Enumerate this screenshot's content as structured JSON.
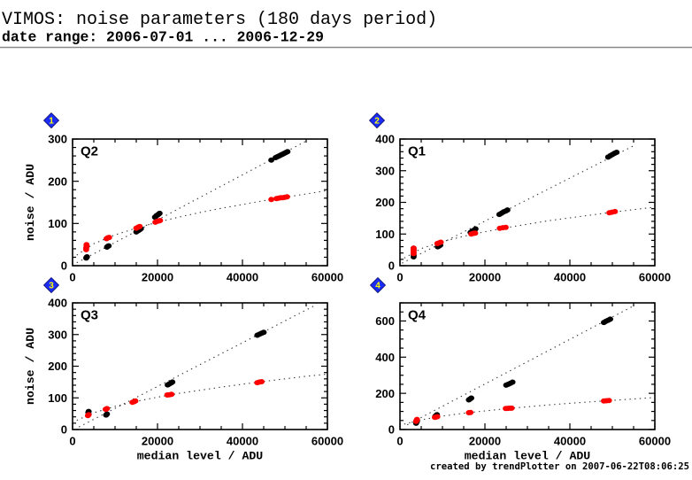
{
  "header": {
    "title": "VIMOS: noise parameters (180 days period)",
    "subtitle": "date range: 2006-07-01 ... 2006-12-29"
  },
  "footer": {
    "credit": "created by trendPlotter on 2007-06-22T08:06:25"
  },
  "chart_data": [
    {
      "type": "scatter",
      "panel_number": "1",
      "label": "Q2",
      "ylabel": "noise / ADU",
      "xlim": [
        0,
        60000
      ],
      "ylim": [
        0,
        300
      ],
      "xticks": [
        0,
        20000,
        40000,
        60000
      ],
      "x_minor_step": 5000,
      "yticks": [
        0,
        100,
        200,
        300
      ],
      "y_minor_step": 20,
      "grid": false,
      "marker_color": "#1a2cf5",
      "series": [
        {
          "name": "black",
          "color": "#000000",
          "points": [
            [
              3200,
              18
            ],
            [
              3300,
              20
            ],
            [
              3400,
              21
            ],
            [
              8100,
              44
            ],
            [
              8300,
              46
            ],
            [
              8500,
              47
            ],
            [
              15000,
              80
            ],
            [
              15300,
              82
            ],
            [
              15600,
              84
            ],
            [
              15900,
              86
            ],
            [
              16100,
              88
            ],
            [
              19400,
              115
            ],
            [
              19700,
              118
            ],
            [
              20000,
              120
            ],
            [
              20300,
              122
            ],
            [
              20500,
              124
            ],
            [
              46800,
              250
            ],
            [
              47800,
              256
            ],
            [
              48200,
              258
            ],
            [
              48600,
              260
            ],
            [
              49000,
              262
            ],
            [
              49400,
              264
            ],
            [
              49800,
              266
            ],
            [
              50200,
              268
            ],
            [
              50600,
              270
            ]
          ]
        },
        {
          "name": "red",
          "color": "#ff0000",
          "points": [
            [
              3200,
              38
            ],
            [
              3200,
              42
            ],
            [
              3300,
              45
            ],
            [
              3300,
              48
            ],
            [
              3300,
              50
            ],
            [
              8000,
              64
            ],
            [
              8300,
              66
            ],
            [
              8600,
              67
            ],
            [
              15000,
              89
            ],
            [
              15400,
              91
            ],
            [
              15800,
              93
            ],
            [
              19500,
              103
            ],
            [
              19900,
              105
            ],
            [
              20300,
              106
            ],
            [
              20600,
              107
            ],
            [
              46800,
              157
            ],
            [
              48000,
              159
            ],
            [
              48500,
              160
            ],
            [
              49000,
              161
            ],
            [
              49500,
              161
            ],
            [
              50000,
              162
            ],
            [
              50500,
              163
            ]
          ]
        }
      ],
      "fit_lines": [
        {
          "name": "black-fit",
          "color": "#333333",
          "style": "dotted",
          "points": [
            [
              1000,
              7
            ],
            [
              55500,
              298
            ]
          ]
        },
        {
          "name": "red-fit",
          "color": "#333333",
          "style": "dotted",
          "points": [
            [
              1000,
              25
            ],
            [
              5000,
              52
            ],
            [
              10000,
              73
            ],
            [
              15000,
              89
            ],
            [
              20000,
              103
            ],
            [
              25000,
              115
            ],
            [
              30000,
              126
            ],
            [
              35000,
              136
            ],
            [
              40000,
              145
            ],
            [
              45000,
              154
            ],
            [
              50000,
              162
            ],
            [
              55000,
              170
            ],
            [
              60000,
              178
            ]
          ]
        }
      ]
    },
    {
      "type": "scatter",
      "panel_number": "2",
      "label": "Q1",
      "xlim": [
        0,
        60000
      ],
      "ylim": [
        0,
        400
      ],
      "xticks": [
        0,
        20000,
        40000,
        60000
      ],
      "x_minor_step": 5000,
      "yticks": [
        0,
        100,
        200,
        300,
        400
      ],
      "y_minor_step": 20,
      "grid": false,
      "marker_color": "#1a2cf5",
      "series": [
        {
          "name": "black",
          "color": "#000000",
          "points": [
            [
              3200,
              28
            ],
            [
              3200,
              35
            ],
            [
              3200,
              42
            ],
            [
              3200,
              50
            ],
            [
              3200,
              55
            ],
            [
              8900,
              60
            ],
            [
              9200,
              62
            ],
            [
              9500,
              65
            ],
            [
              16600,
              105
            ],
            [
              17000,
              109
            ],
            [
              17400,
              112
            ],
            [
              17800,
              116
            ],
            [
              23400,
              162
            ],
            [
              23900,
              166
            ],
            [
              24400,
              170
            ],
            [
              24900,
              173
            ],
            [
              25300,
              176
            ],
            [
              49000,
              343
            ],
            [
              49500,
              347
            ],
            [
              50000,
              351
            ],
            [
              50500,
              355
            ],
            [
              51000,
              358
            ]
          ]
        },
        {
          "name": "red",
          "color": "#ff0000",
          "points": [
            [
              3200,
              38
            ],
            [
              3200,
              44
            ],
            [
              3200,
              50
            ],
            [
              3200,
              55
            ],
            [
              8800,
              70
            ],
            [
              9200,
              72
            ],
            [
              9600,
              74
            ],
            [
              16800,
              100
            ],
            [
              17300,
              102
            ],
            [
              17700,
              103
            ],
            [
              23500,
              118
            ],
            [
              24200,
              120
            ],
            [
              24900,
              121
            ],
            [
              49300,
              167
            ],
            [
              49900,
              169
            ],
            [
              50600,
              171
            ]
          ]
        }
      ],
      "fit_lines": [
        {
          "name": "black-fit",
          "color": "#333333",
          "style": "dotted",
          "points": [
            [
              500,
              8
            ],
            [
              55500,
              382
            ]
          ]
        },
        {
          "name": "red-fit",
          "color": "#333333",
          "style": "dotted",
          "points": [
            [
              1000,
              24
            ],
            [
              5000,
              54
            ],
            [
              10000,
              76
            ],
            [
              15000,
              93
            ],
            [
              20000,
              107
            ],
            [
              25000,
              120
            ],
            [
              30000,
              131
            ],
            [
              35000,
              142
            ],
            [
              40000,
              151
            ],
            [
              45000,
              160
            ],
            [
              50000,
              169
            ],
            [
              55000,
              177
            ],
            [
              60000,
              185
            ]
          ]
        }
      ]
    },
    {
      "type": "scatter",
      "panel_number": "3",
      "label": "Q3",
      "xlabel": "median level / ADU",
      "ylabel": "noise / ADU",
      "xlim": [
        0,
        60000
      ],
      "ylim": [
        0,
        400
      ],
      "xticks": [
        0,
        20000,
        40000,
        60000
      ],
      "x_minor_step": 5000,
      "yticks": [
        0,
        100,
        200,
        300,
        400
      ],
      "y_minor_step": 20,
      "grid": false,
      "marker_color": "#1a2cf5",
      "series": [
        {
          "name": "black",
          "color": "#000000",
          "points": [
            [
              3700,
              54
            ],
            [
              3800,
              57
            ],
            [
              7900,
              46
            ],
            [
              8100,
              49
            ],
            [
              22400,
              141
            ],
            [
              22800,
              144
            ],
            [
              23200,
              147
            ],
            [
              23500,
              150
            ],
            [
              43500,
              298
            ],
            [
              44000,
              301
            ],
            [
              44500,
              304
            ],
            [
              45000,
              307
            ]
          ]
        },
        {
          "name": "red",
          "color": "#ff0000",
          "points": [
            [
              3600,
              44
            ],
            [
              3800,
              47
            ],
            [
              7800,
              64
            ],
            [
              8100,
              66
            ],
            [
              14100,
              86
            ],
            [
              14500,
              88
            ],
            [
              14800,
              90
            ],
            [
              22300,
              109
            ],
            [
              22800,
              110
            ],
            [
              23300,
              111
            ],
            [
              43500,
              148
            ],
            [
              44000,
              150
            ],
            [
              44500,
              151
            ]
          ]
        }
      ],
      "fit_lines": [
        {
          "name": "black-fit",
          "color": "#333333",
          "style": "dotted",
          "points": [
            [
              1500,
              8
            ],
            [
              57500,
              395
            ]
          ]
        },
        {
          "name": "red-fit",
          "color": "#333333",
          "style": "dotted",
          "points": [
            [
              1000,
              29
            ],
            [
              5000,
              53
            ],
            [
              10000,
              73
            ],
            [
              15000,
              89
            ],
            [
              20000,
              102
            ],
            [
              25000,
              114
            ],
            [
              30000,
              124
            ],
            [
              35000,
              134
            ],
            [
              40000,
              143
            ],
            [
              45000,
              152
            ],
            [
              50000,
              160
            ],
            [
              55000,
              168
            ],
            [
              60000,
              175
            ]
          ]
        }
      ]
    },
    {
      "type": "scatter",
      "panel_number": "4",
      "label": "Q4",
      "xlabel": "median level / ADU",
      "xlim": [
        0,
        60000
      ],
      "ylim": [
        0,
        700
      ],
      "xticks": [
        0,
        20000,
        40000,
        60000
      ],
      "x_minor_step": 5000,
      "yticks": [
        0,
        200,
        400,
        600
      ],
      "y_minor_step": 50,
      "grid": false,
      "marker_color": "#1a2cf5",
      "series": [
        {
          "name": "black",
          "color": "#000000",
          "points": [
            [
              3800,
              35
            ],
            [
              3900,
              41
            ],
            [
              4000,
              46
            ],
            [
              8300,
              73
            ],
            [
              8500,
              78
            ],
            [
              8700,
              82
            ],
            [
              16200,
              164
            ],
            [
              16500,
              169
            ],
            [
              16800,
              174
            ],
            [
              25000,
              245
            ],
            [
              25500,
              250
            ],
            [
              26000,
              256
            ],
            [
              26500,
              262
            ],
            [
              48000,
              592
            ],
            [
              48500,
              598
            ],
            [
              49000,
              604
            ],
            [
              49500,
              610
            ]
          ]
        },
        {
          "name": "red",
          "color": "#ff0000",
          "points": [
            [
              3800,
              45
            ],
            [
              3900,
              50
            ],
            [
              4000,
              56
            ],
            [
              8200,
              67
            ],
            [
              8500,
              69
            ],
            [
              8800,
              71
            ],
            [
              16200,
              93
            ],
            [
              16600,
              94
            ],
            [
              24900,
              116
            ],
            [
              25400,
              117
            ],
            [
              25900,
              118
            ],
            [
              26300,
              118
            ],
            [
              48000,
              158
            ],
            [
              48600,
              159
            ],
            [
              49200,
              160
            ]
          ]
        }
      ],
      "fit_lines": [
        {
          "name": "black-fit",
          "color": "#333333",
          "style": "dotted",
          "points": [
            [
              1700,
              26
            ],
            [
              55100,
              685
            ]
          ]
        },
        {
          "name": "red-fit",
          "color": "#333333",
          "style": "dotted",
          "points": [
            [
              1000,
              30
            ],
            [
              5000,
              54
            ],
            [
              10000,
              74
            ],
            [
              15000,
              90
            ],
            [
              20000,
              103
            ],
            [
              25000,
              115
            ],
            [
              30000,
              126
            ],
            [
              35000,
              136
            ],
            [
              40000,
              145
            ],
            [
              45000,
              153
            ],
            [
              50000,
              161
            ],
            [
              55000,
              169
            ],
            [
              60000,
              177
            ]
          ]
        }
      ]
    }
  ]
}
